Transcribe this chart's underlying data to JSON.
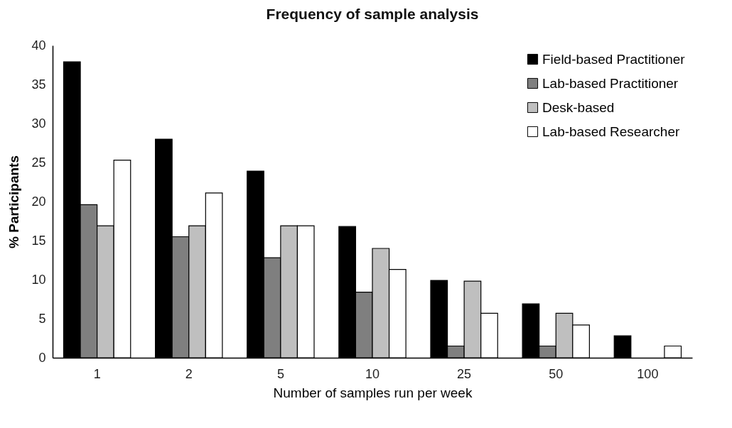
{
  "chart_data": {
    "type": "bar",
    "title": "Frequency of sample analysis",
    "xlabel": "Number of samples run per week",
    "ylabel": "% Participants",
    "categories": [
      "1",
      "2",
      "5",
      "10",
      "25",
      "50",
      "100"
    ],
    "series": [
      {
        "name": "Field-based Practitioner",
        "color": "#000000",
        "values": [
          37.9,
          28.0,
          23.9,
          16.8,
          9.9,
          6.9,
          2.8
        ]
      },
      {
        "name": "Lab-based Practitioner",
        "color": "#7f7f7f",
        "values": [
          19.6,
          15.5,
          12.8,
          8.4,
          1.5,
          1.5,
          null
        ]
      },
      {
        "name": "Desk-based",
        "color": "#bfbfbf",
        "values": [
          16.9,
          16.9,
          16.9,
          14.0,
          9.8,
          5.7,
          null
        ]
      },
      {
        "name": "Lab-based Researcher",
        "color": "#ffffff",
        "values": [
          25.3,
          21.1,
          16.9,
          11.3,
          5.7,
          4.2,
          1.5
        ]
      }
    ],
    "ylim": [
      0,
      40
    ],
    "yticks": [
      0,
      5,
      10,
      15,
      20,
      25,
      30,
      35,
      40
    ],
    "grid": false,
    "legend": "top right"
  }
}
